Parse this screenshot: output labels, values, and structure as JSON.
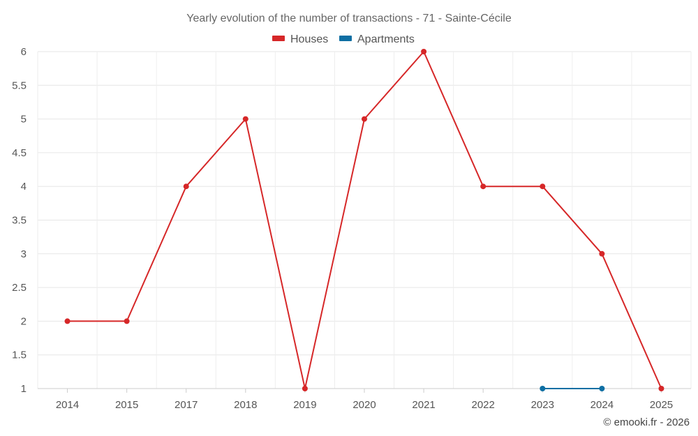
{
  "chart_data": {
    "type": "line",
    "title": "Yearly evolution of the number of transactions - 71 - Sainte-Cécile",
    "categories": [
      "2014",
      "2015",
      "2017",
      "2018",
      "2019",
      "2020",
      "2021",
      "2022",
      "2023",
      "2024",
      "2025"
    ],
    "series": [
      {
        "name": "Houses",
        "color": "#d62728",
        "values": [
          2,
          2,
          4,
          5,
          1,
          5,
          6,
          4,
          4,
          3,
          1
        ]
      },
      {
        "name": "Apartments",
        "color": "#0e6fa3",
        "values": [
          null,
          null,
          null,
          null,
          null,
          null,
          null,
          null,
          1,
          1,
          null
        ]
      }
    ],
    "ylim": [
      1,
      6
    ],
    "yticks": [
      1,
      1.5,
      2,
      2.5,
      3,
      3.5,
      4,
      4.5,
      5,
      5.5,
      6
    ],
    "ytick_labels": [
      "1",
      "1.5",
      "2",
      "2.5",
      "3",
      "3.5",
      "4",
      "4.5",
      "5",
      "5.5",
      "6"
    ],
    "grid": true,
    "legend_position": "top-center"
  },
  "credit": "© emooki.fr - 2026"
}
